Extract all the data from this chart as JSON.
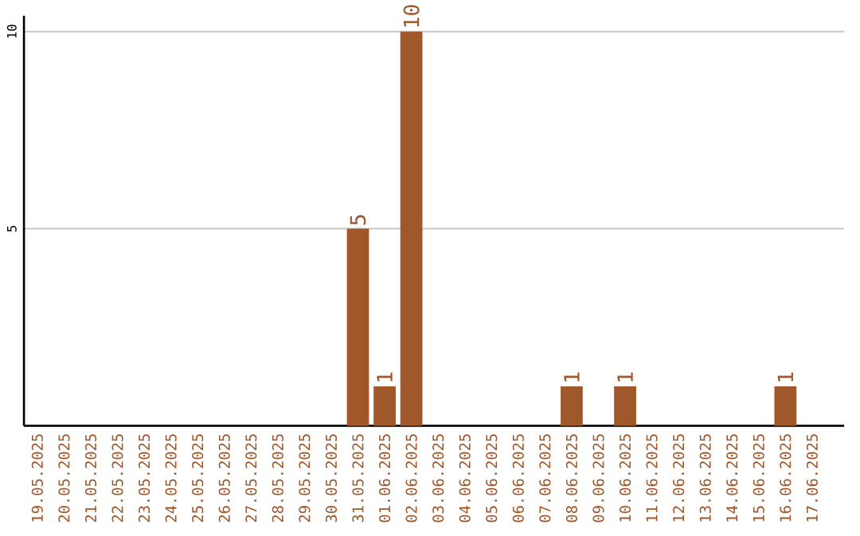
{
  "chart_data": {
    "type": "bar",
    "categories": [
      "19.05.2025",
      "20.05.2025",
      "21.05.2025",
      "22.05.2025",
      "23.05.2025",
      "24.05.2025",
      "25.05.2025",
      "26.05.2025",
      "27.05.2025",
      "28.05.2025",
      "29.05.2025",
      "30.05.2025",
      "31.05.2025",
      "01.06.2025",
      "02.06.2025",
      "03.06.2025",
      "04.06.2025",
      "05.06.2025",
      "06.06.2025",
      "07.06.2025",
      "08.06.2025",
      "09.06.2025",
      "10.06.2025",
      "11.06.2025",
      "12.06.2025",
      "13.06.2025",
      "14.06.2025",
      "15.06.2025",
      "16.06.2025",
      "17.06.2025"
    ],
    "values": [
      0,
      0,
      0,
      0,
      0,
      0,
      0,
      0,
      0,
      0,
      0,
      0,
      5,
      1,
      10,
      0,
      0,
      0,
      0,
      0,
      1,
      0,
      1,
      0,
      0,
      0,
      0,
      0,
      1,
      0
    ],
    "value_labels": [
      null,
      null,
      null,
      null,
      null,
      null,
      null,
      null,
      null,
      null,
      null,
      null,
      "5",
      "1",
      "10",
      null,
      null,
      null,
      null,
      null,
      "1",
      null,
      "1",
      null,
      null,
      null,
      null,
      null,
      "1",
      null
    ],
    "color": "#a0572a",
    "ylim": [
      0,
      10.4
    ],
    "yticks": [
      5,
      10
    ],
    "grid": "y"
  }
}
